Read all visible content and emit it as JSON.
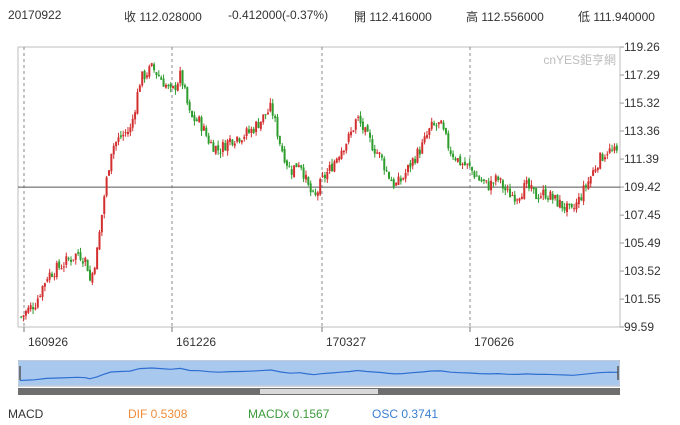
{
  "header": {
    "date": "20170922",
    "close_label": "收 112.028000",
    "change": "-0.412000(-0.37%)",
    "open_label": "開 112.416000",
    "high_label": "高 112.556000",
    "low_label": "低 111.940000"
  },
  "watermark": "cnYES鉅亨網",
  "colors": {
    "up": "#d32f2f",
    "down": "#2e9d2e",
    "macd_label": "#333333",
    "dif": "#f08c3a",
    "macdx": "#3c9a3c",
    "osc": "#3a7fd1",
    "navigator_fill": "#a9c8ee",
    "navigator_line": "#2f6fd1"
  },
  "macd": {
    "label": "MACD",
    "dif": "DIF 0.5308",
    "macdx": "MACDx 0.1567",
    "osc": "OSC 0.3741"
  },
  "chart_data": {
    "type": "candlestick",
    "y_ticks": [
      "119.26",
      "117.29",
      "115.32",
      "113.36",
      "111.39",
      "109.42",
      "107.45",
      "105.49",
      "103.52",
      "101.55",
      "99.59"
    ],
    "x_ticks": [
      "160926",
      "161226",
      "170327",
      "170626"
    ],
    "ylim": [
      99.59,
      119.26
    ],
    "reference_line": 109.42,
    "path": [
      [
        0,
        100.3
      ],
      [
        12,
        101.3
      ],
      [
        22,
        103.2
      ],
      [
        35,
        104.0
      ],
      [
        48,
        104.8
      ],
      [
        55,
        104.2
      ],
      [
        58,
        102.7
      ],
      [
        64,
        105.0
      ],
      [
        70,
        109.0
      ],
      [
        76,
        112.2
      ],
      [
        84,
        113.0
      ],
      [
        92,
        113.5
      ],
      [
        100,
        117.0
      ],
      [
        110,
        117.8
      ],
      [
        118,
        117.0
      ],
      [
        126,
        116.0
      ],
      [
        134,
        117.3
      ],
      [
        142,
        114.3
      ],
      [
        150,
        114.0
      ],
      [
        158,
        112.6
      ],
      [
        166,
        112.0
      ],
      [
        176,
        112.8
      ],
      [
        184,
        113.0
      ],
      [
        192,
        113.3
      ],
      [
        200,
        114.0
      ],
      [
        210,
        115.0
      ],
      [
        218,
        112.3
      ],
      [
        226,
        110.5
      ],
      [
        234,
        111.3
      ],
      [
        240,
        109.6
      ],
      [
        246,
        108.5
      ],
      [
        252,
        109.8
      ],
      [
        260,
        110.8
      ],
      [
        268,
        112.0
      ],
      [
        276,
        113.0
      ],
      [
        282,
        114.3
      ],
      [
        290,
        113.0
      ],
      [
        296,
        112.2
      ],
      [
        302,
        111.5
      ],
      [
        308,
        110.3
      ],
      [
        314,
        109.5
      ],
      [
        320,
        110.0
      ],
      [
        328,
        111.2
      ],
      [
        336,
        112.2
      ],
      [
        344,
        113.6
      ],
      [
        352,
        113.8
      ],
      [
        360,
        112.0
      ],
      [
        368,
        111.2
      ],
      [
        376,
        110.8
      ],
      [
        384,
        110.0
      ],
      [
        392,
        109.5
      ],
      [
        400,
        110.0
      ],
      [
        408,
        109.0
      ],
      [
        416,
        108.8
      ],
      [
        424,
        109.5
      ],
      [
        432,
        108.8
      ],
      [
        440,
        109.0
      ],
      [
        448,
        108.5
      ],
      [
        456,
        108.0
      ],
      [
        462,
        107.6
      ],
      [
        468,
        108.5
      ],
      [
        476,
        109.8
      ],
      [
        484,
        111.2
      ],
      [
        492,
        112.0
      ],
      [
        500,
        111.8
      ]
    ]
  },
  "navigator_ticks_hidden": true
}
